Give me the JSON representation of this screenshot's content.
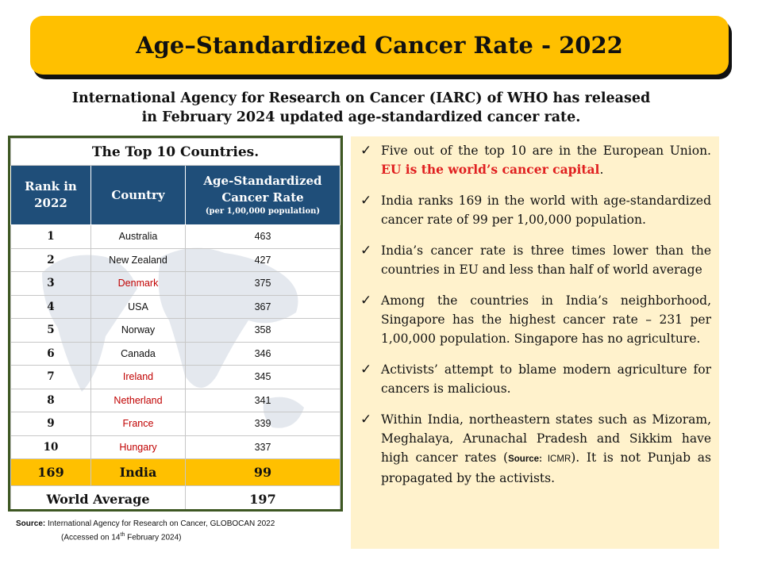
{
  "title": "Age–Standardized Cancer Rate - 2022",
  "subtitle": {
    "line1": "International Agency for Research on Cancer (IARC) of WHO has released",
    "line2": "in February 2024 updated age-standardized cancer rate."
  },
  "table": {
    "caption": "The Top 10 Countries.",
    "headers": {
      "rank": "Rank in 2022",
      "country": "Country",
      "rate": "Age-Standardized Cancer Rate",
      "rate_note": "(per 1,00,000 population)"
    },
    "rows": [
      {
        "rank": "1",
        "country": "Australia",
        "rate": "463",
        "eu": false
      },
      {
        "rank": "2",
        "country": "New Zealand",
        "rate": "427",
        "eu": false
      },
      {
        "rank": "3",
        "country": "Denmark",
        "rate": "375",
        "eu": true
      },
      {
        "rank": "4",
        "country": "USA",
        "rate": "367",
        "eu": false
      },
      {
        "rank": "5",
        "country": "Norway",
        "rate": "358",
        "eu": false
      },
      {
        "rank": "6",
        "country": "Canada",
        "rate": "346",
        "eu": false
      },
      {
        "rank": "7",
        "country": "Ireland",
        "rate": "345",
        "eu": true
      },
      {
        "rank": "8",
        "country": "Netherland",
        "rate": "341",
        "eu": true
      },
      {
        "rank": "9",
        "country": "France",
        "rate": "339",
        "eu": true
      },
      {
        "rank": "10",
        "country": "Hungary",
        "rate": "337",
        "eu": true
      }
    ],
    "india": {
      "rank": "169",
      "country": "India",
      "rate": "99"
    },
    "world": {
      "label": "World Average",
      "rate": "197"
    }
  },
  "source": {
    "label": "Source:",
    "text": "International Agency for Research on Cancer, GLOBOCAN 2022",
    "accessed_pre": "(Accessed on 14",
    "accessed_sup": "th",
    "accessed_post": " February 2024)"
  },
  "points": {
    "p1a": "Five out of the top 10 are in the European Union.",
    "p1b": "EU is the world’s cancer capital",
    "p1c": ".",
    "p2": "India ranks 169 in the world with age-standardized cancer rate of 99 per 1,00,000 population.",
    "p3": "India’s cancer rate is three times lower than the countries in EU and less than half of world average",
    "p4": "Among the countries in India’s neighborhood, Singapore has the highest cancer rate – 231 per 1,00,000 population. Singapore has no agriculture.",
    "p5": "Activists’ attempt to blame modern agriculture for cancers  is malicious.",
    "p6a": "Within India, northeastern states such as Mizoram, Meghalaya, Arunachal Pradesh and Sikkim have high cancer rates (",
    "p6src": "Source:",
    "p6icmr": " ICMR",
    "p6b": "). It is not Punjab as propagated by the activists."
  },
  "check_glyph": "✓",
  "colors": {
    "accent": "#ffc000",
    "header": "#1f4e79",
    "eu_red": "#c00000",
    "panel": "#fff2cc",
    "border": "#3d5722"
  }
}
